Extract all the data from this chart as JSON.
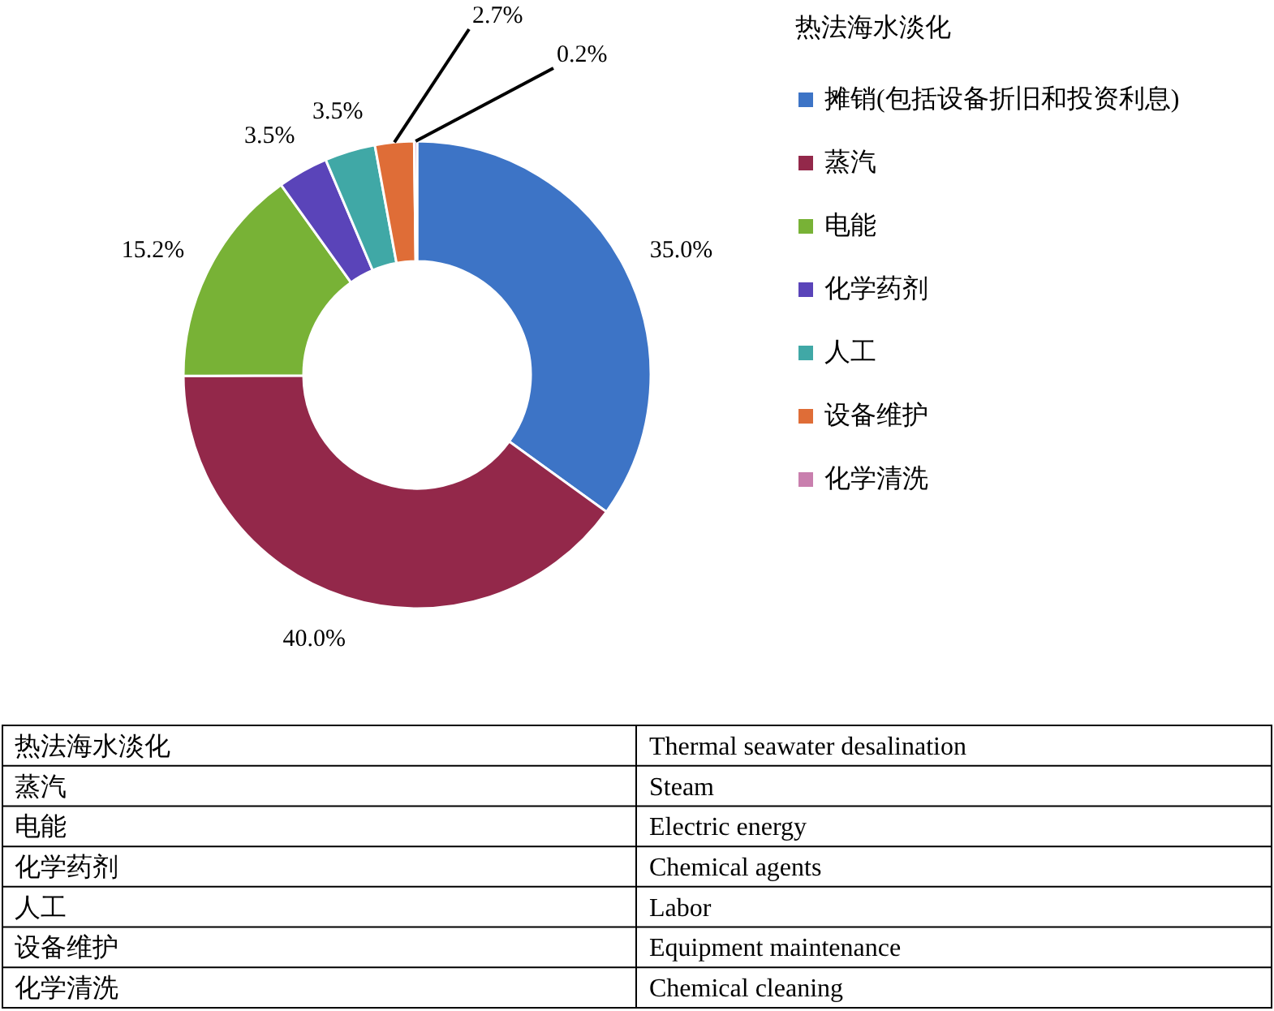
{
  "chart_data": {
    "type": "donut",
    "legend_title": "热法海水淡化",
    "categories": [
      "摊销(包括设备折旧和投资利息)",
      "蒸汽",
      "电能",
      "化学药剂",
      "人工",
      "设备维护",
      "化学清洗"
    ],
    "values": [
      35.0,
      40.0,
      15.2,
      3.5,
      3.5,
      2.7,
      0.2
    ],
    "value_labels": [
      "35.0%",
      "40.0%",
      "15.2%",
      "3.5%",
      "3.5%",
      "2.7%",
      "0.2%"
    ],
    "colors": [
      "#3d74c6",
      "#93284a",
      "#78b236",
      "#5a44b9",
      "#40a8a6",
      "#df6d37",
      "#c97fae"
    ],
    "legend": "right",
    "annotations": [
      "热法海水淡化",
      "Thermal seawater desalination",
      "蒸汽",
      "Steam",
      "电能",
      "Electric energy",
      "化学药剂",
      "Chemical agents",
      "人工",
      "Labor",
      "设备维护",
      "Equipment maintenance",
      "化学清洗",
      "Chemical cleaning"
    ]
  }
}
